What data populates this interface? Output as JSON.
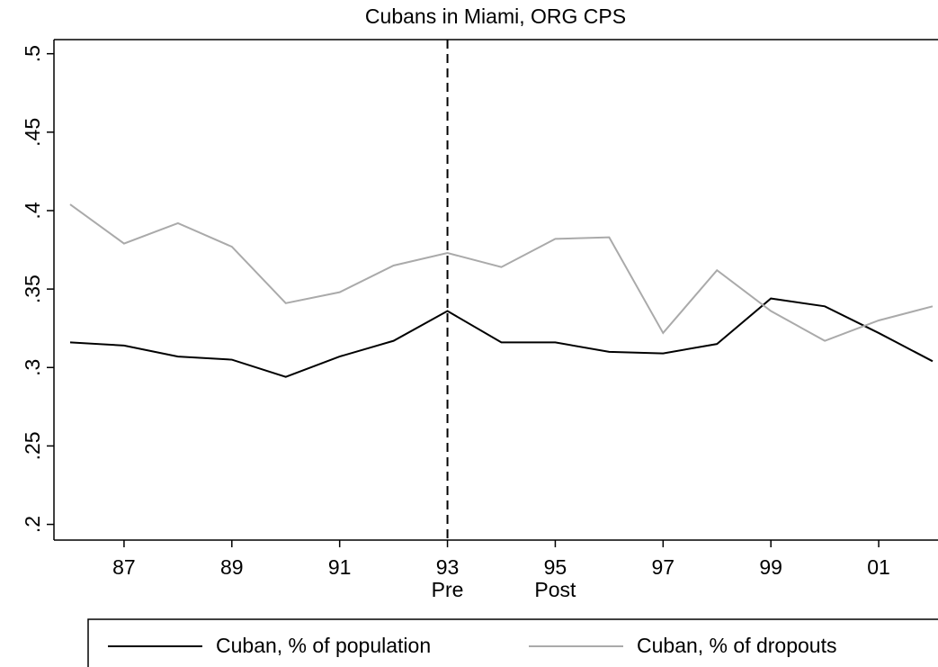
{
  "chart_data": {
    "type": "line",
    "title": "Cubans in Miami, ORG CPS",
    "x": [
      1986,
      1987,
      1988,
      1989,
      1990,
      1991,
      1992,
      1993,
      1994,
      1995,
      1996,
      1997,
      1998,
      1999,
      2000,
      2001,
      2002
    ],
    "series": [
      {
        "name": "Cuban, % of population",
        "color": "#000000",
        "values": [
          0.316,
          0.314,
          0.307,
          0.305,
          0.294,
          0.307,
          0.317,
          0.336,
          0.316,
          0.316,
          0.31,
          0.309,
          0.315,
          0.344,
          0.339,
          0.322,
          0.304
        ]
      },
      {
        "name": "Cuban, % of dropouts",
        "color": "#aaaaaa",
        "values": [
          0.404,
          0.379,
          0.392,
          0.377,
          0.341,
          0.348,
          0.365,
          0.373,
          0.364,
          0.382,
          0.383,
          0.322,
          0.362,
          0.336,
          0.317,
          0.33,
          0.339
        ]
      }
    ],
    "xlim": [
      1985.7,
      2002.1
    ],
    "xticks": [
      {
        "value": 1987,
        "label": "87"
      },
      {
        "value": 1989,
        "label": "89"
      },
      {
        "value": 1991,
        "label": "91"
      },
      {
        "value": 1993,
        "label": "93"
      },
      {
        "value": 1995,
        "label": "95"
      },
      {
        "value": 1997,
        "label": "97"
      },
      {
        "value": 1999,
        "label": "99"
      },
      {
        "value": 2001,
        "label": "01"
      }
    ],
    "ylim": [
      0.19,
      0.509
    ],
    "yticks": [
      {
        "value": 0.2,
        "label": ".2"
      },
      {
        "value": 0.25,
        "label": ".25"
      },
      {
        "value": 0.3,
        "label": ".3"
      },
      {
        "value": 0.35,
        "label": ".35"
      },
      {
        "value": 0.4,
        "label": ".4"
      },
      {
        "value": 0.45,
        "label": ".45"
      },
      {
        "value": 0.5,
        "label": ".5"
      }
    ],
    "vline": 1993,
    "annotations": [
      {
        "text": "Pre",
        "x": 1993
      },
      {
        "text": "Post",
        "x": 1995
      }
    ],
    "legend": "bottom"
  }
}
